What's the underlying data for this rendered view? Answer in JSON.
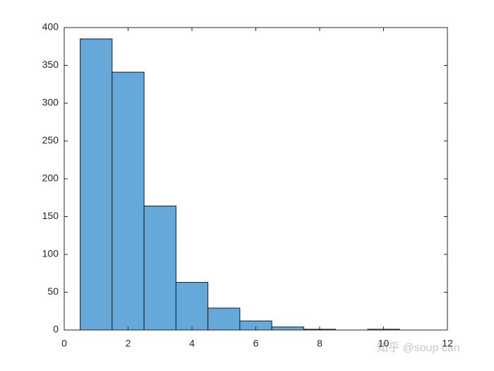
{
  "chart_data": {
    "type": "histogram",
    "bins": [
      0.5,
      1.5,
      2.5,
      3.5,
      4.5,
      5.5,
      6.5,
      7.5,
      8.5,
      9.5,
      10.5
    ],
    "counts": [
      385,
      341,
      164,
      63,
      29,
      12,
      4,
      1,
      0,
      1
    ],
    "color": "#64a9d9",
    "xlim": [
      0,
      12
    ],
    "xticks": [
      0,
      2,
      4,
      6,
      8,
      10,
      12
    ],
    "ylim": [
      0,
      400
    ],
    "yticks": [
      0,
      50,
      100,
      150,
      200,
      250,
      300,
      350,
      400
    ],
    "grid": false,
    "watermark": "知乎 @soup can"
  }
}
